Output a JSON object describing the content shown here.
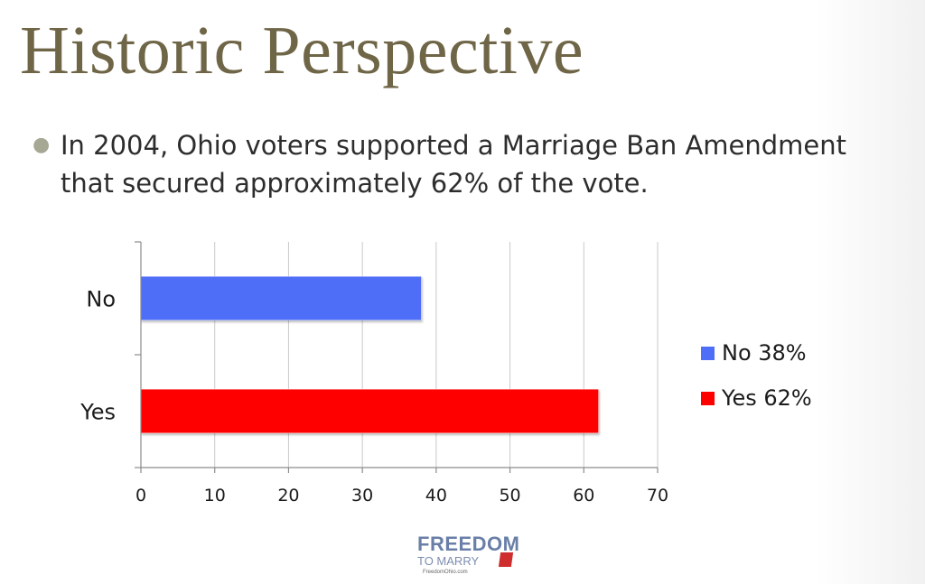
{
  "slide": {
    "title": "Historic Perspective",
    "bullet": "In 2004, Ohio voters supported a Marriage Ban Amendment that secured approximately 62% of the vote."
  },
  "chart_data": {
    "type": "bar",
    "orientation": "horizontal",
    "categories": [
      "No",
      "Yes"
    ],
    "values": [
      38,
      62
    ],
    "colors": [
      "#4f6ef7",
      "#fe0000"
    ],
    "xlim": [
      0,
      70
    ],
    "xticks": [
      0,
      10,
      20,
      30,
      40,
      50,
      60,
      70
    ],
    "grid": true,
    "legend_position": "right",
    "legend": [
      {
        "label": "No 38%",
        "color": "#4f6ef7"
      },
      {
        "label": "Yes 62%",
        "color": "#fe0000"
      }
    ]
  },
  "logo": {
    "line1": "FREEDOM",
    "line2": "TO MARRY",
    "line3": "FreedomOhio.com"
  },
  "icons": {
    "bullet": "bullet-dot-icon"
  }
}
